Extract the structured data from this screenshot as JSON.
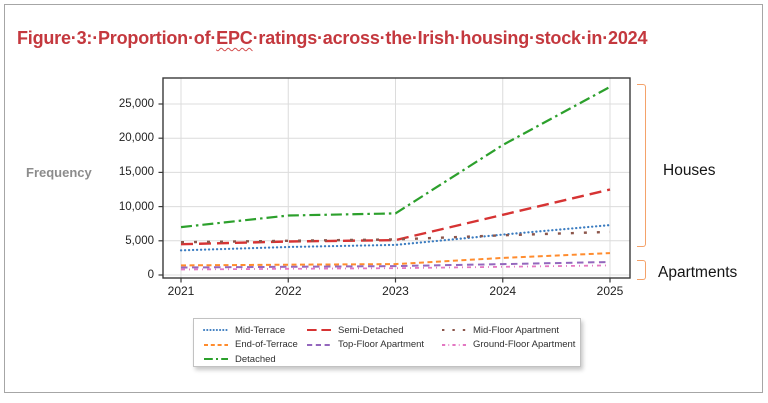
{
  "figure_title": {
    "prefix": "Figure·3:·Proportion·of·",
    "misspelled_word": "EPC",
    "suffix": "·ratings·across·the·Irish·housing·stock·in·2024",
    "color": "#c4383e"
  },
  "annotations": {
    "houses_label": "Houses",
    "apartments_label": "Apartments",
    "bracket_color": "#f4a26a"
  },
  "chart_data": {
    "type": "line",
    "title": "",
    "xlabel": "",
    "ylabel": "Frequency",
    "grid": true,
    "legend_position": "below-center",
    "x": [
      2021,
      2022,
      2023,
      2024,
      2025
    ],
    "xticklabels": [
      "2021",
      "2022",
      "2023",
      "2024",
      "2025"
    ],
    "yticks": [
      0,
      5000,
      10000,
      15000,
      20000,
      25000
    ],
    "yticklabels": [
      "0",
      "5,000",
      "10,000",
      "15,000",
      "20,000",
      "25,000"
    ],
    "xlim": [
      2020.83,
      2025.2
    ],
    "ylim": [
      -500,
      28800
    ],
    "axis_color": "#3a3a3a",
    "grid_color": "#dcdcdc",
    "series": [
      {
        "name": "Mid-Terrace",
        "color": "#3b7cc0",
        "dash": [
          0.2,
          3.8
        ],
        "cap": "round",
        "width": 2.2,
        "values": [
          3600,
          4100,
          4400,
          5900,
          7300
        ],
        "legend_col": 0,
        "legend_row": 0
      },
      {
        "name": "End-of-Terrace",
        "color": "#ff8c2e",
        "dash": [
          5,
          3.5
        ],
        "width": 2,
        "values": [
          1400,
          1500,
          1600,
          2500,
          3200
        ],
        "legend_col": 0,
        "legend_row": 1
      },
      {
        "name": "Detached",
        "color": "#2ca02c",
        "dash": [
          11,
          4,
          2.5,
          4
        ],
        "width": 2.2,
        "values": [
          7000,
          8700,
          9000,
          19000,
          27500
        ],
        "legend_col": 0,
        "legend_row": 2
      },
      {
        "name": "Semi-Detached",
        "color": "#d63333",
        "dash": [
          12,
          6
        ],
        "width": 2.4,
        "values": [
          4500,
          4900,
          5100,
          8800,
          12500
        ],
        "legend_col": 1,
        "legend_row": 0
      },
      {
        "name": "Top-Floor Apartment",
        "color": "#9467bd",
        "dash": [
          6.5,
          4.5
        ],
        "width": 2,
        "values": [
          1100,
          1200,
          1300,
          1600,
          1900
        ],
        "legend_col": 1,
        "legend_row": 1
      },
      {
        "name": "Mid-Floor Apartment",
        "color": "#8c564b",
        "dash": [
          3,
          10
        ],
        "width": 2.4,
        "values": [
          4800,
          5000,
          5200,
          5800,
          6300
        ],
        "legend_col": 2,
        "legend_row": 0
      },
      {
        "name": "Ground-Floor Apartment",
        "color": "#e377c2",
        "dash": [
          4,
          4,
          1,
          4
        ],
        "width": 1.8,
        "values": [
          800,
          900,
          1000,
          1200,
          1400
        ],
        "legend_col": 2,
        "legend_row": 1
      }
    ]
  }
}
